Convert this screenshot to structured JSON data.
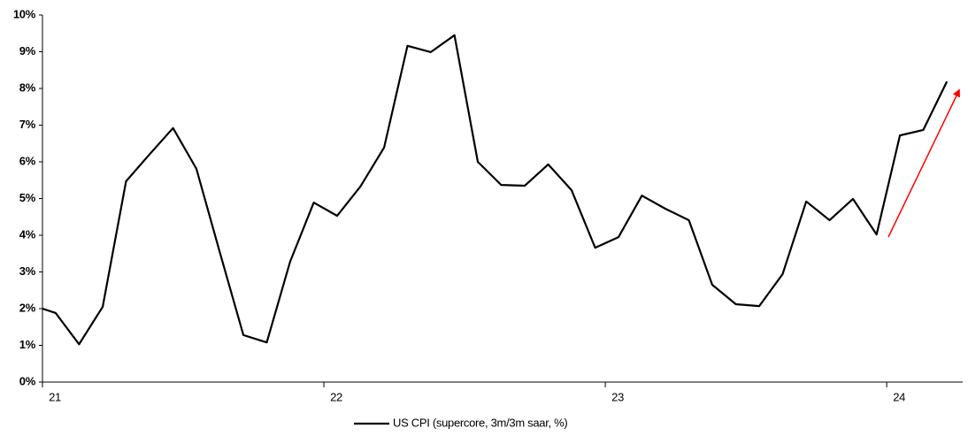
{
  "chart_data": {
    "type": "line",
    "x": [
      21,
      21.047,
      21.13,
      21.214,
      21.297,
      21.38,
      21.464,
      21.547,
      21.63,
      21.714,
      21.797,
      21.88,
      21.964,
      22.047,
      22.13,
      22.214,
      22.297,
      22.38,
      22.464,
      22.547,
      22.63,
      22.714,
      22.797,
      22.88,
      22.964,
      23.047,
      23.13,
      23.214,
      23.297,
      23.38,
      23.464,
      23.547,
      23.63,
      23.714,
      23.797,
      23.88,
      23.964,
      24.047,
      24.13,
      24.214
    ],
    "series": [
      {
        "name": "US CPI (supercore, 3m/3m saar, %)",
        "color": "#000000",
        "values": [
          2.0,
          1.88,
          1.03,
          2.05,
          5.47,
          6.2,
          6.92,
          5.81,
          3.54,
          1.28,
          1.08,
          3.28,
          4.89,
          4.53,
          5.33,
          6.39,
          9.16,
          8.99,
          9.45,
          6.0,
          5.37,
          5.35,
          5.93,
          5.23,
          3.66,
          3.95,
          5.08,
          4.72,
          4.41,
          2.65,
          2.12,
          2.07,
          2.94,
          4.92,
          4.41,
          4.99,
          4.02,
          6.72,
          6.87,
          8.19
        ]
      }
    ],
    "xlim": [
      21,
      24.27
    ],
    "xticks": [
      21,
      22,
      23,
      24
    ],
    "ylim": [
      0,
      10
    ],
    "yticks": [
      {
        "value": 0,
        "label": "0%"
      },
      {
        "value": 1,
        "label": "1%"
      },
      {
        "value": 2,
        "label": "2%"
      },
      {
        "value": 3,
        "label": "3%"
      },
      {
        "value": 4,
        "label": "4%"
      },
      {
        "value": 5,
        "label": "5%"
      },
      {
        "value": 6,
        "label": "6%"
      },
      {
        "value": 7,
        "label": "7%"
      },
      {
        "value": 8,
        "label": "8%"
      },
      {
        "value": 9,
        "label": "9%"
      },
      {
        "value": 10,
        "label": "10%"
      }
    ],
    "grid": false,
    "legend": "bottom"
  }
}
